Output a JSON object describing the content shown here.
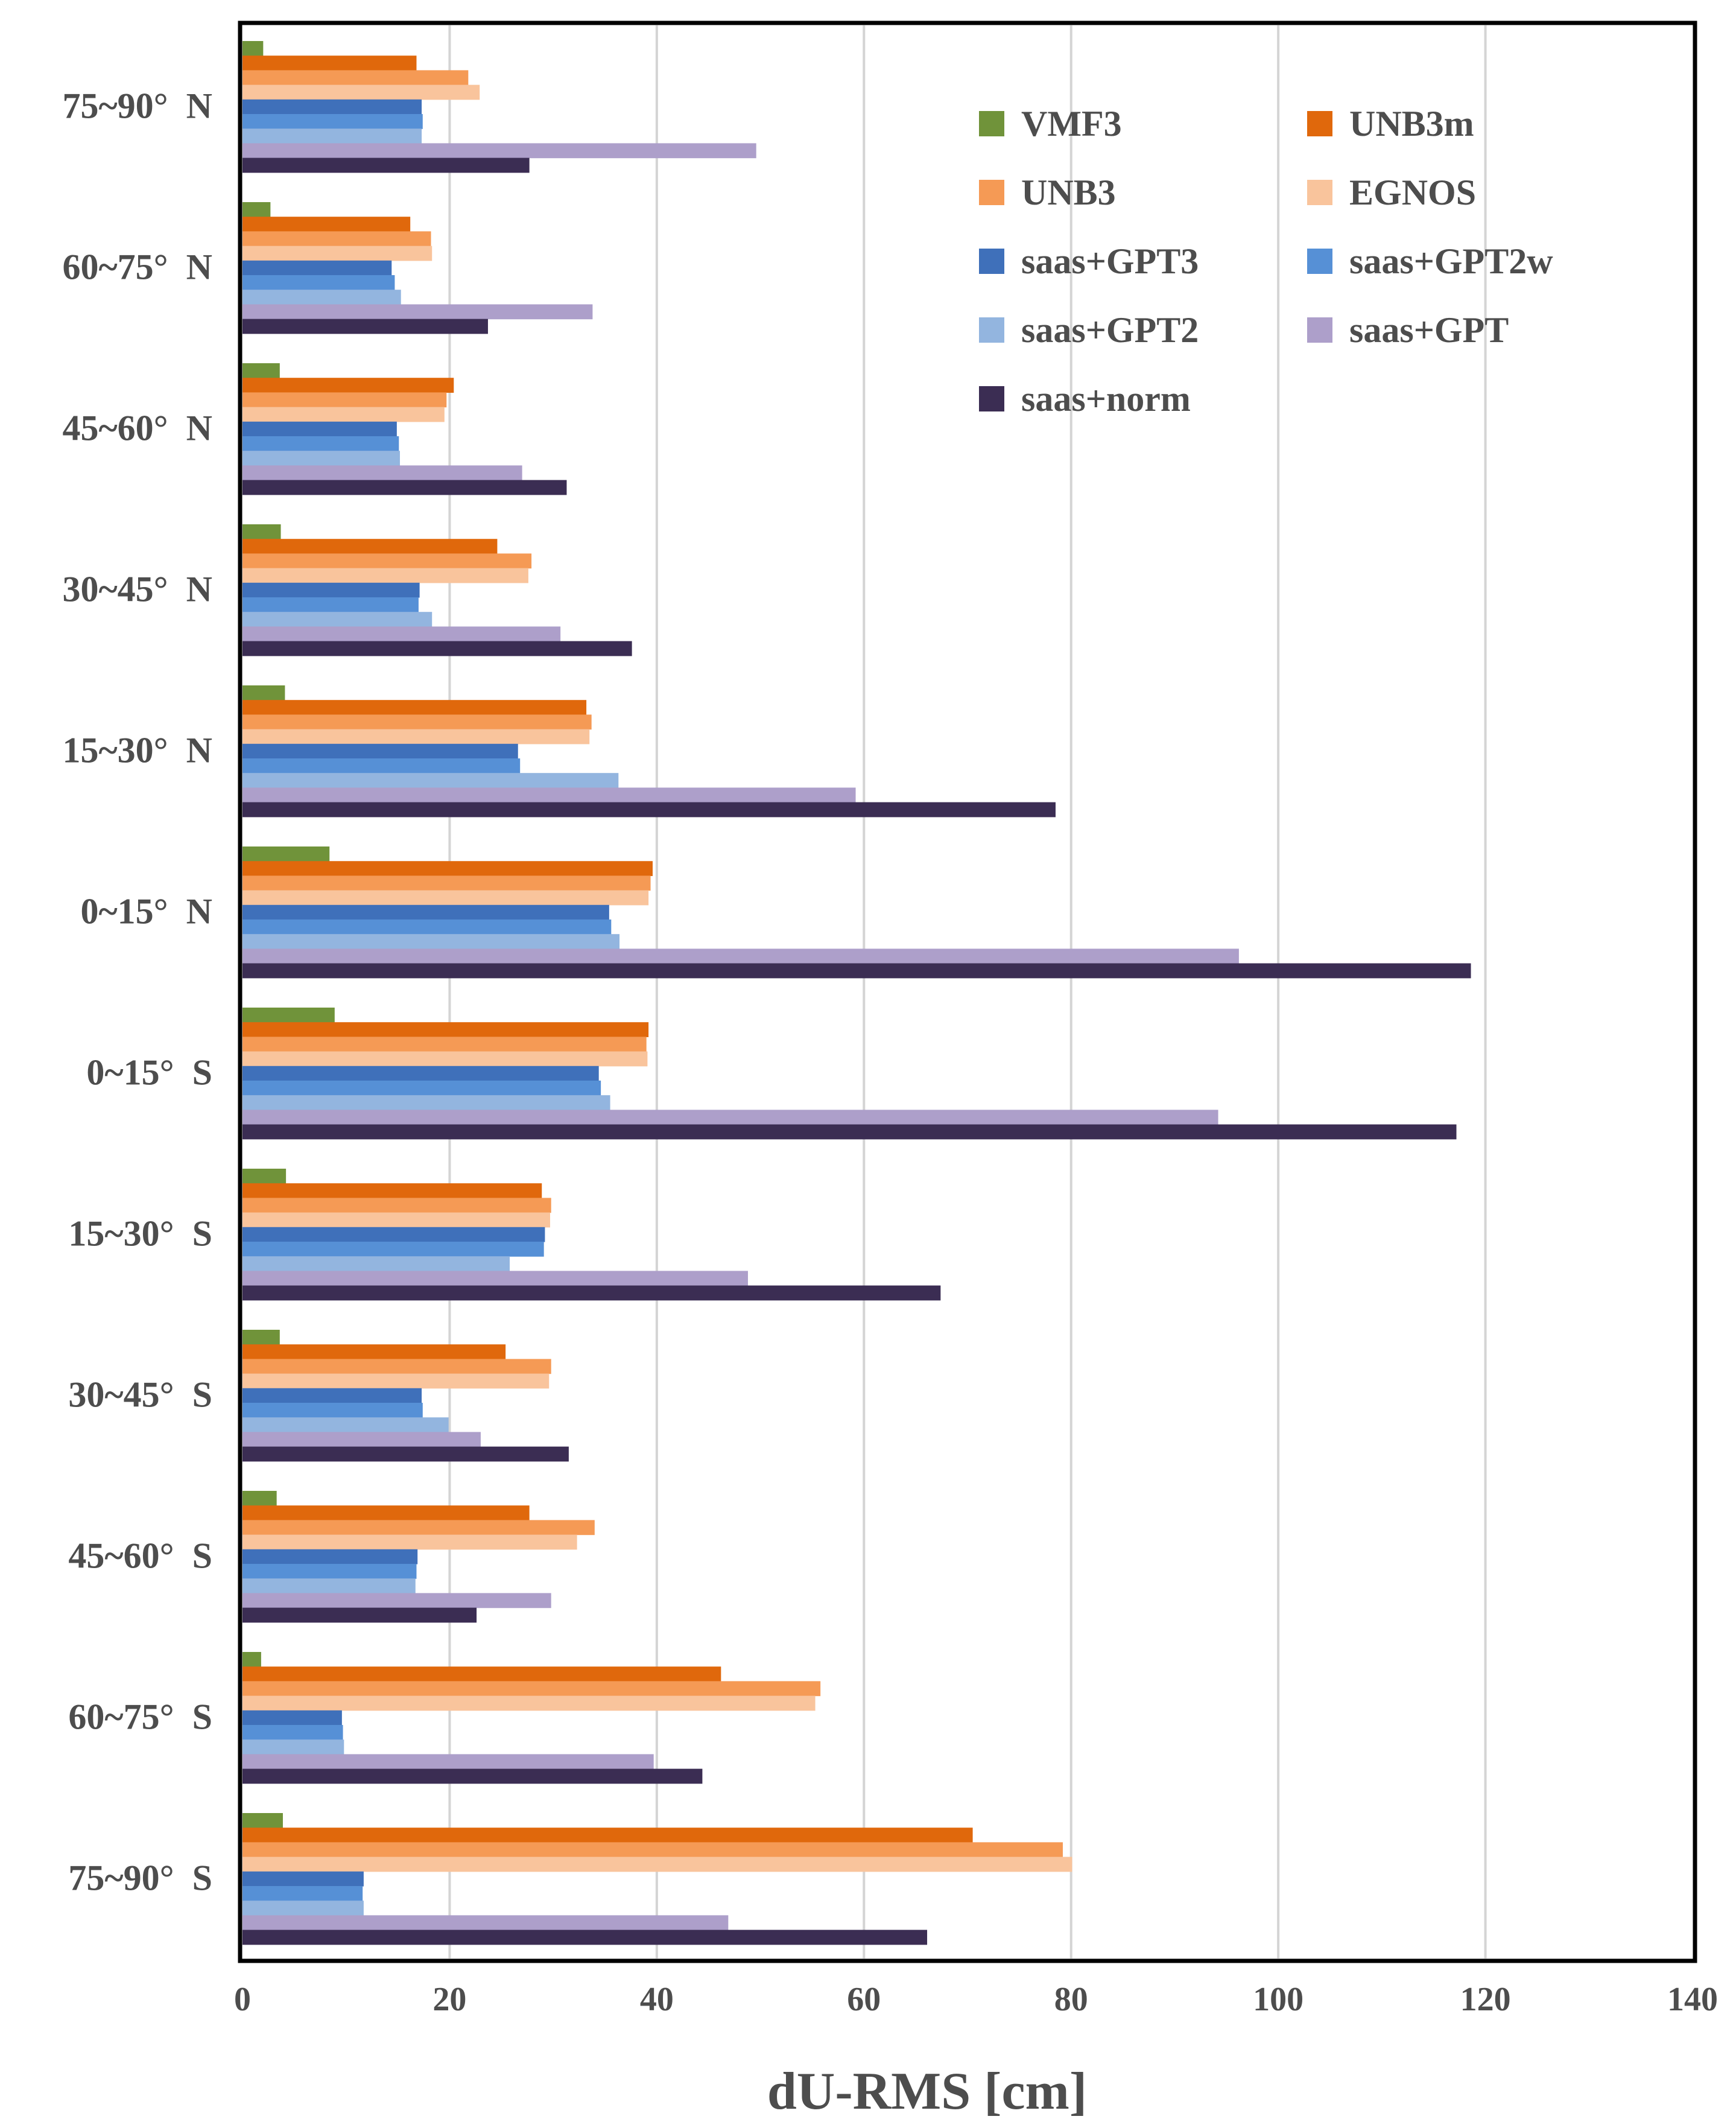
{
  "chart_data": {
    "type": "bar",
    "orientation": "horizontal",
    "title": "",
    "xlabel": "dU-RMS [cm]",
    "ylabel": "",
    "xlim": [
      0,
      140
    ],
    "x_ticks": [
      0,
      20,
      40,
      60,
      80,
      100,
      120,
      140
    ],
    "grid": "vertical",
    "legend_position": "top-right",
    "categories": [
      "75~90° N",
      "60~75° N",
      "45~60° N",
      "30~45° N",
      "15~30° N",
      "0~15° N",
      "0~15° S",
      "15~30° S",
      "30~45° S",
      "45~60° S",
      "60~75° S",
      "75~90° S"
    ],
    "category_labels": [
      "75~90°  N",
      "60~75°  N",
      "45~60°  N",
      "30~45°  N",
      "15~30°  N",
      "0~15°  N",
      "0~15°  S",
      "15~30°  S",
      "30~45°  S",
      "45~60°  S",
      "60~75°  S",
      "75~90°  S"
    ],
    "series": [
      {
        "name": "VMF3",
        "color": "#70933a",
        "values": [
          2.0,
          2.7,
          3.6,
          3.7,
          4.1,
          8.4,
          8.9,
          4.2,
          3.6,
          3.3,
          1.8,
          3.9
        ]
      },
      {
        "name": "UNB3m",
        "color": "#e0680c",
        "values": [
          16.8,
          16.2,
          20.4,
          24.6,
          33.2,
          39.6,
          39.2,
          28.9,
          25.4,
          27.7,
          46.2,
          70.5
        ]
      },
      {
        "name": "UNB3",
        "color": "#f59a55",
        "values": [
          21.8,
          18.2,
          19.7,
          27.9,
          33.7,
          39.4,
          39.0,
          29.8,
          29.8,
          34.0,
          55.8,
          79.2
        ]
      },
      {
        "name": "EGNOS",
        "color": "#f9c49c",
        "values": [
          22.9,
          18.3,
          19.5,
          27.6,
          33.5,
          39.2,
          39.1,
          29.7,
          29.6,
          32.3,
          55.3,
          80.1
        ]
      },
      {
        "name": "saas+GPT3",
        "color": "#3f70ba",
        "values": [
          17.3,
          14.4,
          14.9,
          17.1,
          26.6,
          35.4,
          34.4,
          29.2,
          17.3,
          16.9,
          9.6,
          11.7
        ]
      },
      {
        "name": "saas+GPT2w",
        "color": "#5690d6",
        "values": [
          17.4,
          14.7,
          15.1,
          17.0,
          26.8,
          35.6,
          34.6,
          29.1,
          17.4,
          16.8,
          9.7,
          11.6
        ]
      },
      {
        "name": "saas+GPT2",
        "color": "#93b5df",
        "values": [
          17.3,
          15.3,
          15.2,
          18.3,
          36.3,
          36.4,
          35.5,
          25.8,
          19.9,
          16.7,
          9.8,
          11.7
        ]
      },
      {
        "name": "saas+GPT",
        "color": "#ad9fca",
        "values": [
          49.6,
          33.8,
          27.0,
          30.7,
          59.2,
          96.2,
          94.2,
          48.8,
          23.0,
          29.8,
          39.7,
          46.9
        ]
      },
      {
        "name": "saas+norm",
        "color": "#3b2d53",
        "values": [
          27.7,
          23.7,
          31.3,
          37.6,
          78.5,
          118.6,
          117.2,
          67.4,
          31.5,
          22.6,
          44.4,
          66.1
        ]
      }
    ]
  }
}
